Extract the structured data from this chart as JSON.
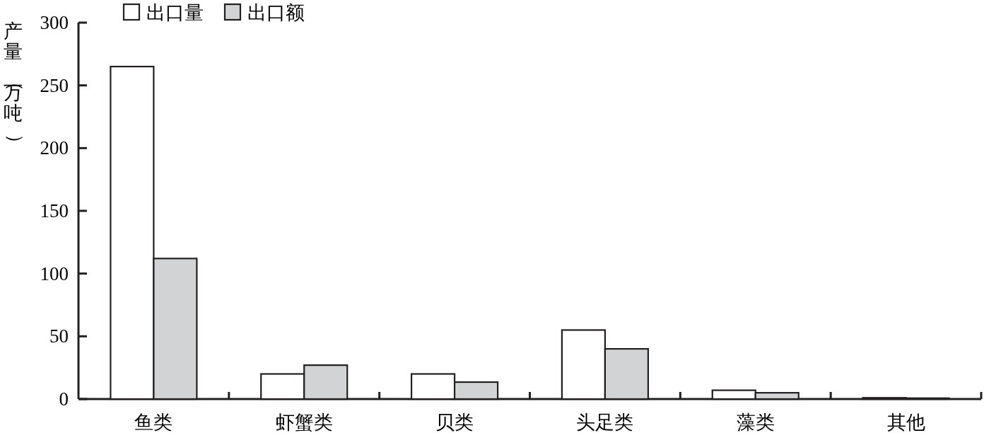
{
  "chart_data": {
    "type": "bar",
    "ylabel": "产量（万吨）",
    "categories": [
      "鱼类",
      "虾蟹类",
      "贝类",
      "头足类",
      "藻类",
      "其他"
    ],
    "series": [
      {
        "name": "出口量",
        "color": "#ffffff",
        "values": [
          265,
          20,
          20,
          55,
          7,
          1
        ]
      },
      {
        "name": "出口额",
        "color": "#d1d3d4",
        "values": [
          112,
          27,
          13.5,
          40,
          5,
          0.7
        ]
      }
    ],
    "ylim": [
      0,
      300
    ],
    "yticks": [
      0,
      50,
      100,
      150,
      200,
      250,
      300
    ],
    "legend": "top",
    "grid": false
  }
}
